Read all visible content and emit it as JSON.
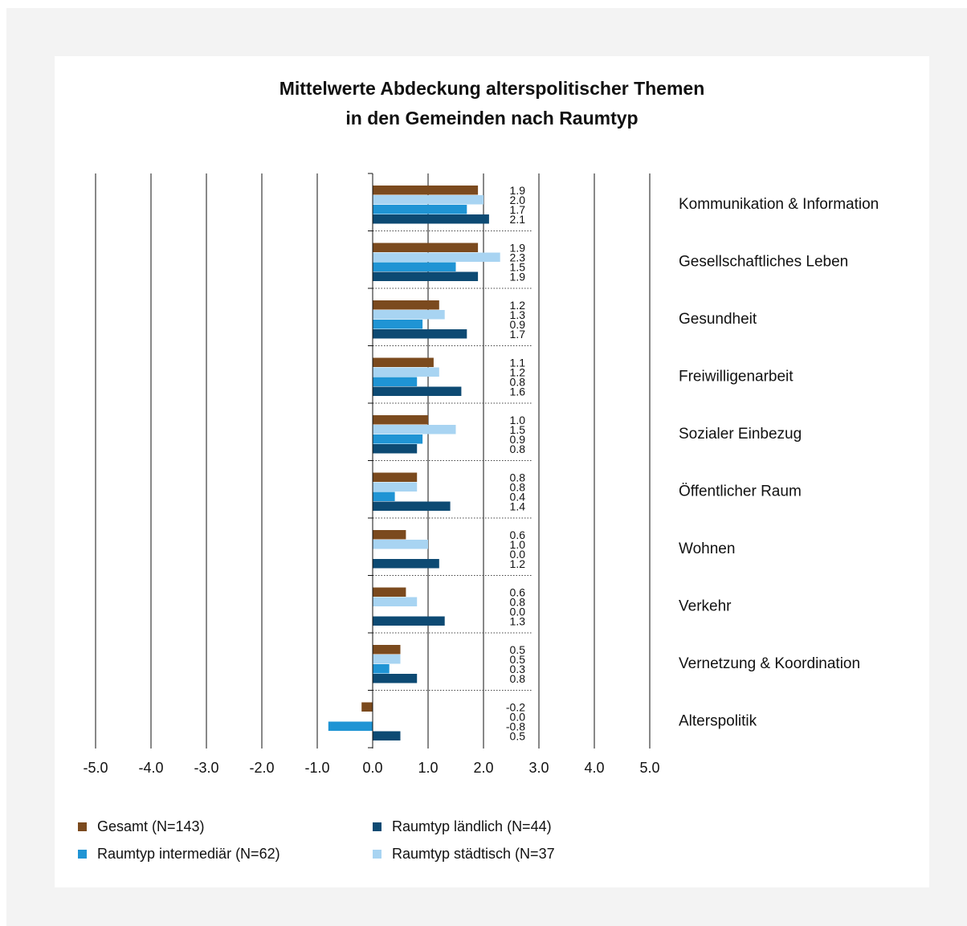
{
  "chart_data": {
    "type": "bar",
    "orientation": "horizontal",
    "title": [
      "Mittelwerte Abdeckung alterspolitischer Themen",
      "in den Gemeinden nach Raumtyp"
    ],
    "categories": [
      "Kommunikation & Information",
      "Gesellschaftliches Leben",
      "Gesundheit",
      "Freiwilligenarbeit",
      "Sozialer Einbezug",
      "Öffentlicher Raum",
      "Wohnen",
      "Verkehr",
      "Vernetzung & Koordination",
      "Alterspolitik"
    ],
    "series": [
      {
        "name": "Gesamt (N=143)",
        "color": "#7b4a1e",
        "values": [
          1.9,
          1.9,
          1.2,
          1.1,
          1.0,
          0.8,
          0.6,
          0.6,
          0.5,
          -0.2
        ]
      },
      {
        "name": "Raumtyp städtisch (N=37",
        "color": "#a8d4f2",
        "values": [
          2.0,
          2.3,
          1.3,
          1.2,
          1.5,
          0.8,
          1.0,
          0.8,
          0.5,
          0.0
        ]
      },
      {
        "name": "Raumtyp intermediär (N=62)",
        "color": "#1f94d4",
        "values": [
          1.7,
          1.5,
          0.9,
          0.8,
          0.9,
          0.4,
          0.0,
          0.0,
          0.3,
          -0.8
        ]
      },
      {
        "name": "Raumtyp ländlich (N=44)",
        "color": "#0d4a73",
        "values": [
          2.1,
          1.9,
          1.7,
          1.6,
          0.8,
          1.4,
          1.2,
          1.3,
          0.8,
          0.5
        ]
      }
    ],
    "value_labels": [
      [
        "1.9",
        "2.0",
        "1.7",
        "2.1"
      ],
      [
        "1.9",
        "2.3",
        "1.5",
        "1.9"
      ],
      [
        "1.2",
        "1.3",
        "0.9",
        "1.7"
      ],
      [
        "1.1",
        "1.2",
        "0.8",
        "1.6"
      ],
      [
        "1.0",
        "1.5",
        "0.9",
        "0.8"
      ],
      [
        "0.8",
        "0.8",
        "0.4",
        "1.4"
      ],
      [
        "0.6",
        "1.0",
        "0.0",
        "1.2"
      ],
      [
        "0.6",
        "0.8",
        "0.0",
        "1.3"
      ],
      [
        "0.5",
        "0.5",
        "0.3",
        "0.8"
      ],
      [
        "-0.2",
        "0.0",
        "-0.8",
        "0.5"
      ]
    ],
    "xlim": [
      -5,
      5
    ],
    "xticks": [
      "-5.0",
      "-4.0",
      "-3.0",
      "-2.0",
      "-1.0",
      "0.0",
      "1.0",
      "2.0",
      "3.0",
      "4.0",
      "5.0"
    ],
    "grid": true,
    "legend": [
      {
        "label": "Gesamt (N=143)",
        "color": "#7b4a1e"
      },
      {
        "label": "Raumtyp ländlich (N=44)",
        "color": "#0d4a73"
      },
      {
        "label": "Raumtyp intermediär (N=62)",
        "color": "#1f94d4"
      },
      {
        "label": "Raumtyp städtisch (N=37",
        "color": "#a8d4f2"
      }
    ],
    "legend_position": "bottom"
  }
}
